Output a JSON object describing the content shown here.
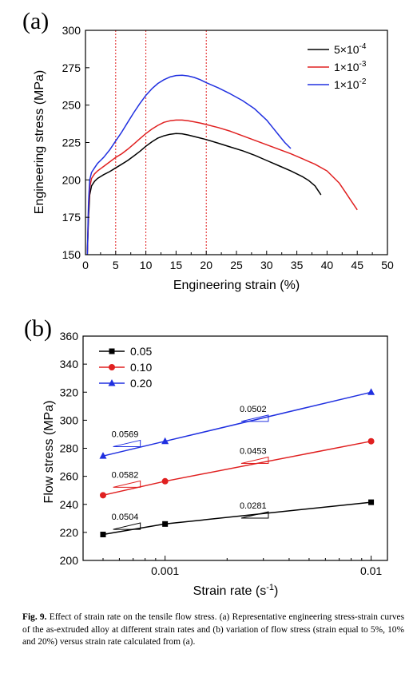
{
  "chart_data": [
    {
      "panel": "(a)",
      "type": "line",
      "xlabel": "Engineering strain (%)",
      "ylabel": "Engineering stress (MPa)",
      "xlim": [
        0,
        50
      ],
      "ylim": [
        150,
        300
      ],
      "xticks": [
        "0",
        "5",
        "10",
        "15",
        "20",
        "25",
        "30",
        "35",
        "40",
        "45",
        "50"
      ],
      "yticks": [
        "150",
        "175",
        "200",
        "225",
        "250",
        "275",
        "300"
      ],
      "vlines": [
        5,
        10,
        20
      ],
      "legend_position": "top-right",
      "series": [
        {
          "name": "5×10",
          "exp": "-4",
          "color": "#000000",
          "x": [
            0.3,
            0.5,
            0.7,
            1.0,
            1.5,
            2,
            3,
            4,
            5,
            6,
            7,
            8,
            9,
            10,
            11,
            12,
            13,
            14,
            15,
            16,
            17,
            18,
            19,
            20,
            22,
            24,
            26,
            28,
            30,
            32,
            34,
            36,
            37,
            38,
            39
          ],
          "y": [
            150,
            175,
            190,
            196,
            199,
            201,
            203.5,
            205.5,
            208,
            210.5,
            213,
            216,
            219,
            222.5,
            225.5,
            228,
            229.5,
            230.5,
            231,
            230.8,
            230,
            229,
            228,
            227,
            224.5,
            222,
            219.5,
            216.5,
            213,
            209.5,
            206,
            202,
            199.5,
            196,
            190
          ]
        },
        {
          "name": "1×10",
          "exp": "-3",
          "color": "#e02020",
          "x": [
            0.3,
            0.5,
            0.7,
            1.0,
            1.5,
            2,
            3,
            4,
            5,
            6,
            7,
            8,
            9,
            10,
            11,
            12,
            13,
            14,
            15,
            16,
            17,
            18,
            19,
            20,
            22,
            24,
            26,
            28,
            30,
            32,
            34,
            36,
            38,
            40,
            42,
            43,
            44,
            45
          ],
          "y": [
            150,
            180,
            195,
            201,
            204,
            206,
            209,
            212,
            215,
            217.5,
            220.5,
            224,
            227.5,
            231,
            234,
            236.5,
            238.5,
            239.5,
            240,
            240,
            239.5,
            238.8,
            238,
            237,
            235,
            232.5,
            229.5,
            226.5,
            223.5,
            220.5,
            217.5,
            214,
            210.5,
            206,
            198,
            192,
            186,
            180
          ]
        },
        {
          "name": "1×10",
          "exp": "-2",
          "color": "#2030e0",
          "x": [
            0.3,
            0.5,
            0.7,
            1.0,
            1.5,
            2,
            3,
            4,
            5,
            6,
            7,
            8,
            9,
            10,
            11,
            12,
            13,
            14,
            15,
            16,
            17,
            18,
            19,
            20,
            22,
            24,
            26,
            28,
            30,
            31,
            32,
            33,
            34
          ],
          "y": [
            150,
            185,
            200,
            205,
            208,
            211,
            215,
            220,
            226,
            232,
            238.5,
            245,
            251,
            256.5,
            261,
            264.5,
            267,
            268.8,
            269.8,
            270,
            269.5,
            268.5,
            267,
            265,
            261.5,
            257.5,
            253,
            247.5,
            240,
            235,
            230,
            225,
            221
          ]
        }
      ]
    },
    {
      "panel": "(b)",
      "type": "line",
      "xscale": "log",
      "xlabel": "Strain rate (s",
      "xlabel_sup": "-1",
      "xlabel_end": ")",
      "ylabel": "Flow stress (MPa)",
      "xlim": [
        0.0004,
        0.012
      ],
      "ylim": [
        200,
        360
      ],
      "xticks": [
        {
          "v": 0.001,
          "label": "0.001"
        },
        {
          "v": 0.01,
          "label": "0.01"
        }
      ],
      "yticks": [
        "200",
        "220",
        "240",
        "260",
        "280",
        "300",
        "320",
        "340",
        "360"
      ],
      "legend_position": "top-left",
      "series": [
        {
          "name": "0.05",
          "marker": "square",
          "color": "#000000",
          "x": [
            0.0005,
            0.001,
            0.01
          ],
          "y": [
            218.5,
            226,
            241.5
          ]
        },
        {
          "name": "0.10",
          "marker": "circle",
          "color": "#e02020",
          "x": [
            0.0005,
            0.001,
            0.01
          ],
          "y": [
            246.5,
            256.5,
            285
          ]
        },
        {
          "name": "0.20",
          "marker": "triangle",
          "color": "#2030e0",
          "x": [
            0.0005,
            0.001,
            0.01
          ],
          "y": [
            274.5,
            285,
            320
          ]
        }
      ],
      "slope_annotations": [
        {
          "label": "0.0504",
          "color": "#000000",
          "x": 0.00055,
          "y": 229
        },
        {
          "label": "0.0582",
          "color": "#e02020",
          "x": 0.00055,
          "y": 259
        },
        {
          "label": "0.0569",
          "color": "#2030e0",
          "x": 0.00055,
          "y": 288
        },
        {
          "label": "0.0281",
          "color": "#000000",
          "x": 0.0023,
          "y": 237
        },
        {
          "label": "0.0453",
          "color": "#e02020",
          "x": 0.0023,
          "y": 276
        },
        {
          "label": "0.0502",
          "color": "#2030e0",
          "x": 0.0023,
          "y": 306
        }
      ]
    }
  ],
  "caption": {
    "prefix": "Fig. 9.",
    "text": " Effect of strain rate on the tensile flow stress. (a) Representative engineering stress-strain curves of the as-extruded alloy at different strain rates and (b) variation of flow stress (strain equal to 5%, 10% and 20%) versus strain rate calculated from (a)."
  }
}
